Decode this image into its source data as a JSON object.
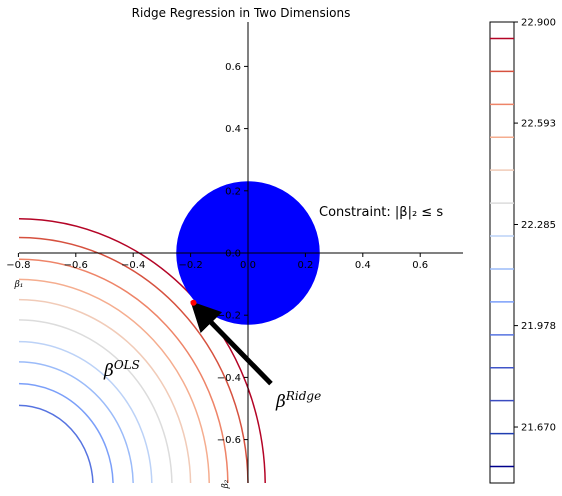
{
  "chart_data": [
    {
      "type": "contour",
      "title": "Ridge Regression in Two Dimensions",
      "xlabel": "β₁",
      "ylabel": "β₂",
      "xlim": [
        -0.8,
        0.75
      ],
      "ylim": [
        -0.75,
        0.75
      ],
      "x_ticks": [
        -0.8,
        -0.6,
        -0.4,
        -0.2,
        0.0,
        0.2,
        0.4,
        0.6
      ],
      "x_tick_labels": [
        "−0.8",
        "−0.6",
        "−0.4",
        "−0.2",
        "0.0",
        "0.2",
        "0.4",
        "0.6"
      ],
      "y_ticks": [
        0.6,
        0.4,
        0.2,
        0.0,
        -0.2,
        -0.4,
        -0.6
      ],
      "y_tick_labels": [
        "0.6",
        "0.4",
        "0.2",
        "0.0",
        "−0.2",
        "−0.4",
        "−0.6"
      ],
      "spines": "centered at origin",
      "grid": false,
      "constraint_region": {
        "shape": "disk",
        "center": [
          0,
          0
        ],
        "radius": 0.25,
        "color": "#0000ff"
      },
      "contours": {
        "center": [
          -0.8,
          -0.75
        ],
        "levels": [
          22.9,
          22.8,
          22.7,
          22.6,
          22.5,
          22.4,
          22.3,
          22.2,
          22.1,
          22.0
        ],
        "radii": [
          0.86,
          0.8,
          0.73,
          0.665,
          0.6,
          0.535,
          0.465,
          0.4,
          0.33,
          0.26
        ],
        "colors": [
          "#b40426",
          "#d6513f",
          "#ee8468",
          "#f5ad8f",
          "#f1cbb8",
          "#dcdcdc",
          "#bcd2f7",
          "#9bbbf9",
          "#7b9ff9",
          "#5673e0"
        ]
      },
      "ridge_point": {
        "x": -0.19,
        "y": -0.16,
        "color": "#ff0000"
      },
      "arrow": {
        "from": [
          0.08,
          -0.42
        ],
        "to": [
          -0.185,
          -0.17
        ],
        "color": "#000000"
      },
      "annotations": {
        "constraint": "Constraint: |β|₂ ≤ s",
        "beta_ols_base": "β",
        "beta_ols_sup": "OLS",
        "beta_ridge_base": "β",
        "beta_ridge_sup": "Ridge"
      }
    },
    {
      "type": "colorbar",
      "vmin": 21.5,
      "vmax": 22.9,
      "tick_values": [
        22.9,
        22.593,
        22.285,
        21.978,
        21.67
      ],
      "tick_labels": [
        "22.900",
        "22.593",
        "22.285",
        "21.978",
        "21.670"
      ],
      "levels": [
        22.85,
        22.75,
        22.65,
        22.55,
        22.45,
        22.35,
        22.25,
        22.15,
        22.05,
        21.95,
        21.85,
        21.75,
        21.65,
        21.55
      ],
      "level_colors": [
        "#b40426",
        "#d6513f",
        "#ee8468",
        "#f5ad8f",
        "#f1cbb8",
        "#dcdcdc",
        "#bcd2f7",
        "#9bbbf9",
        "#7b9ff9",
        "#5673e0",
        "#4055c8",
        "#3b4cc0",
        "#1f3db0",
        "#00008b"
      ]
    }
  ]
}
